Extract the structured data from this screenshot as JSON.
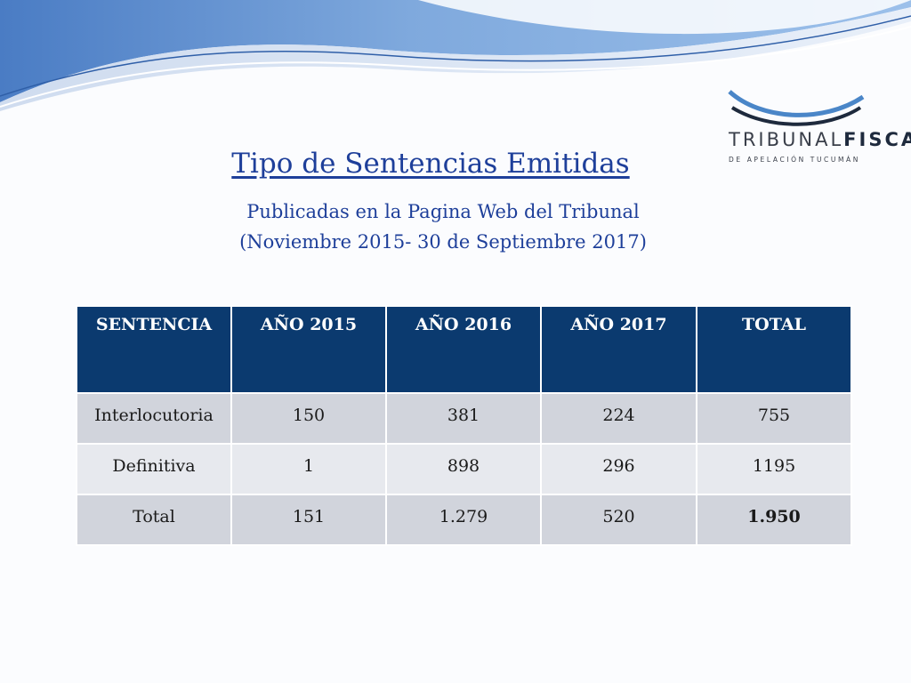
{
  "logo": {
    "word_part1": "TRIBUNAL",
    "word_part2": "FISCAL",
    "subline": "DE APELACIÓN TUCUMÁN"
  },
  "title": "Tipo de Sentencias Emitidas",
  "subtitle_line1": "Publicadas en la Pagina Web del Tribunal",
  "subtitle_line2": "(Noviembre 2015-  30 de Septiembre 2017)",
  "table": {
    "headers": [
      "SENTENCIA",
      "AÑO 2015",
      "AÑO 2016",
      "AÑO 2017",
      "TOTAL"
    ],
    "rows": [
      [
        "Interlocutoria",
        "150",
        "381",
        "224",
        "755"
      ],
      [
        "Definitiva",
        "1",
        "898",
        "296",
        "1195"
      ],
      [
        "Total",
        "151",
        "1.279",
        "520",
        "1.950"
      ]
    ]
  },
  "colors": {
    "header_bg": "#0b3a6f",
    "row_bg": "#d1d4dc",
    "row_alt_bg": "#e7e9ee",
    "title_color": "#1e3f9a",
    "wave_blue": "#5b8fd0"
  }
}
